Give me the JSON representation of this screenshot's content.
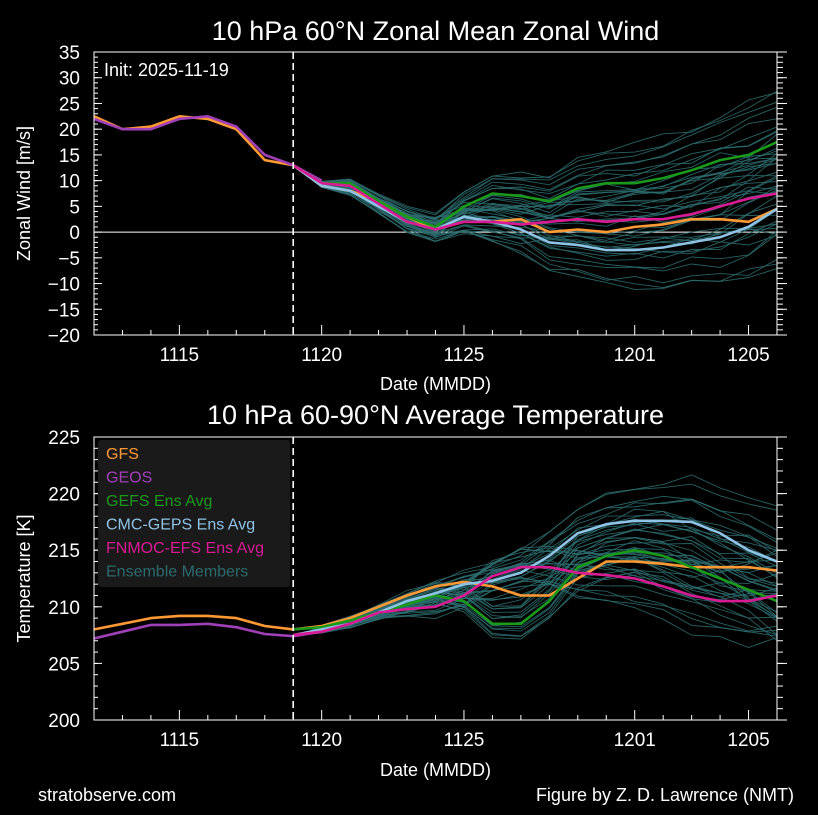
{
  "footer": {
    "left": "stratobserve.com",
    "right": "Figure by Z. D. Lawrence (NMT)"
  },
  "colors": {
    "GFS": "#ff9933",
    "GEOS": "#a040b8",
    "GEFS": "#1a9a1a",
    "CMC": "#8ec3e6",
    "FNMOC": "#d81b93",
    "members": "#2c6b6e"
  },
  "chart_data": [
    {
      "type": "line",
      "title": "10 hPa  60°N   Zonal Mean Zonal Wind",
      "xlabel": "Date (MMDD)",
      "ylabel": "Zonal  Wind   [m/s]",
      "annotation": "Init: 2025-11-19",
      "x_ticks": [
        "1115",
        "1120",
        "1125",
        "1201",
        "1205"
      ],
      "ylim": [
        -20,
        35
      ],
      "y_ticks": [
        35,
        30,
        25,
        20,
        15,
        10,
        5,
        0,
        -5,
        -10,
        -15,
        -20
      ],
      "init_day": 19,
      "zero_line": true,
      "series": [
        {
          "name": "GFS",
          "color_key": "GFS",
          "x": [
            12,
            13,
            14,
            15,
            16,
            17,
            18,
            19,
            20,
            21,
            22,
            23,
            24,
            25,
            26,
            27,
            28,
            29,
            30,
            31,
            32,
            33,
            34,
            35,
            36
          ],
          "y": [
            22.5,
            20,
            20.5,
            22.5,
            22,
            20,
            14,
            13,
            9,
            8,
            6,
            3,
            0.5,
            2,
            2,
            2.5,
            0,
            0.5,
            0,
            1,
            1.5,
            2.5,
            2.5,
            2,
            4.5
          ]
        },
        {
          "name": "GEOS",
          "color_key": "GEOS",
          "x": [
            12,
            13,
            14,
            15,
            16,
            17,
            18,
            19,
            20
          ],
          "y": [
            22,
            20,
            20,
            22,
            22.5,
            20.5,
            15,
            13,
            10
          ]
        },
        {
          "name": "GEFS Ens Avg",
          "color_key": "GEFS",
          "x": [
            19,
            20,
            21,
            22,
            23,
            24,
            25,
            26,
            27,
            28,
            29,
            30,
            31,
            32,
            33,
            34,
            35,
            36
          ],
          "y": [
            13,
            9.5,
            9.5,
            6,
            3,
            1,
            5,
            7.5,
            7,
            6,
            8.5,
            9.5,
            9.5,
            10.5,
            12,
            14,
            15,
            17.5
          ]
        },
        {
          "name": "CMC-GEPS Ens Avg",
          "color_key": "CMC",
          "x": [
            19,
            20,
            21,
            22,
            23,
            24,
            25,
            26,
            27,
            28,
            29,
            30,
            31,
            32,
            33,
            34,
            35,
            36
          ],
          "y": [
            13,
            9,
            8,
            5,
            2,
            0.5,
            3,
            2,
            0.5,
            -2,
            -2.5,
            -3.5,
            -3.5,
            -3,
            -2,
            -1,
            1,
            4.5
          ]
        },
        {
          "name": "FNMOC-EFS Ens Avg",
          "color_key": "FNMOC",
          "x": [
            19,
            20,
            21,
            22,
            23,
            24,
            25,
            26,
            27,
            28,
            29,
            30,
            31,
            32,
            33,
            34,
            35,
            36
          ],
          "y": [
            13,
            9.5,
            9,
            5.5,
            2,
            0.5,
            2,
            2,
            1.5,
            2,
            2.5,
            2,
            2.5,
            2.5,
            3.5,
            5,
            6.5,
            7.5
          ]
        }
      ]
    },
    {
      "type": "line",
      "title": "10 hPa  60-90°N Average Temperature",
      "xlabel": "Date (MMDD)",
      "ylabel": "Temperature   [K]",
      "x_ticks": [
        "1115",
        "1120",
        "1125",
        "1201",
        "1205"
      ],
      "ylim": [
        200,
        225
      ],
      "y_ticks": [
        225,
        220,
        215,
        210,
        205,
        200
      ],
      "init_day": 19,
      "legend_position": "top-left",
      "legend": [
        "GFS",
        "GEOS",
        "GEFS Ens Avg",
        "CMC-GEPS Ens Avg",
        "FNMOC-EFS Ens Avg",
        "Ensemble Members"
      ],
      "series": [
        {
          "name": "GFS",
          "color_key": "GFS",
          "x": [
            12,
            13,
            14,
            15,
            16,
            17,
            18,
            19,
            20,
            21,
            22,
            23,
            24,
            25,
            26,
            27,
            28,
            29,
            30,
            31,
            32,
            33,
            34,
            35,
            36
          ],
          "y": [
            208,
            208.5,
            209,
            209.2,
            209.2,
            209,
            208.3,
            208,
            208.3,
            209,
            210,
            211,
            211.8,
            212.2,
            211.8,
            211,
            211,
            212.5,
            214,
            214,
            213.8,
            213.5,
            213.5,
            213.5,
            213.2
          ]
        },
        {
          "name": "GEOS",
          "color_key": "GEOS",
          "x": [
            12,
            13,
            14,
            15,
            16,
            17,
            18,
            19,
            20
          ],
          "y": [
            207.2,
            207.8,
            208.4,
            208.4,
            208.5,
            208.2,
            207.6,
            207.4,
            207.8
          ]
        },
        {
          "name": "GEFS Ens Avg",
          "color_key": "GEFS",
          "x": [
            19,
            20,
            21,
            22,
            23,
            24,
            25,
            26,
            27,
            28,
            29,
            30,
            31,
            32,
            33,
            34,
            35,
            36
          ],
          "y": [
            208,
            208.2,
            208.8,
            209.5,
            210.2,
            211,
            210.5,
            208.5,
            208.5,
            210.5,
            213.5,
            214.5,
            215,
            214.5,
            213.5,
            212.5,
            211.5,
            210.5
          ]
        },
        {
          "name": "CMC-GEPS Ens Avg",
          "color_key": "CMC",
          "x": [
            19,
            20,
            21,
            22,
            23,
            24,
            25,
            26,
            27,
            28,
            29,
            30,
            31,
            32,
            33,
            34,
            35,
            36
          ],
          "y": [
            207.5,
            208,
            208.5,
            209.5,
            210.5,
            211.2,
            212,
            212.3,
            213,
            214.5,
            216.5,
            217.3,
            217.6,
            217.6,
            217.5,
            216.5,
            215,
            214
          ]
        },
        {
          "name": "FNMOC-EFS Ens Avg",
          "color_key": "FNMOC",
          "x": [
            19,
            20,
            21,
            22,
            23,
            24,
            25,
            26,
            27,
            28,
            29,
            30,
            31,
            32,
            33,
            34,
            35,
            36
          ],
          "y": [
            207.5,
            207.8,
            208.5,
            209.5,
            209.8,
            210,
            211,
            212.7,
            213.5,
            213.5,
            213,
            212.8,
            212.5,
            211.8,
            211,
            210.5,
            210.5,
            211
          ]
        }
      ]
    }
  ]
}
